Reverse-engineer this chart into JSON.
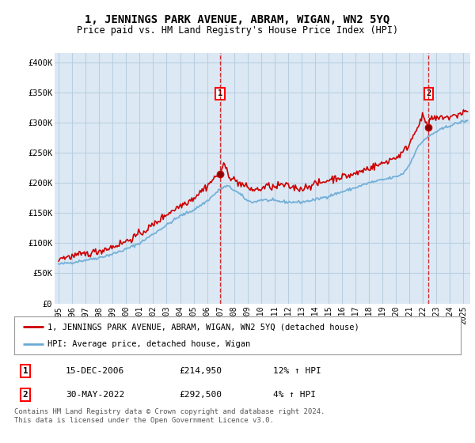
{
  "title": "1, JENNINGS PARK AVENUE, ABRAM, WIGAN, WN2 5YQ",
  "subtitle": "Price paid vs. HM Land Registry's House Price Index (HPI)",
  "ylabel_ticks": [
    "£0",
    "£50K",
    "£100K",
    "£150K",
    "£200K",
    "£250K",
    "£300K",
    "£350K",
    "£400K"
  ],
  "ytick_values": [
    0,
    50000,
    100000,
    150000,
    200000,
    250000,
    300000,
    350000,
    400000
  ],
  "ylim": [
    0,
    415000
  ],
  "xlim_start": 1994.7,
  "xlim_end": 2025.5,
  "background_color": "#dce9f5",
  "plot_bg_color": "#dce9f5",
  "grid_color": "#b8cfe0",
  "hpi_line_color": "#6aaad4",
  "price_line_color": "#cc0000",
  "sale1_x": 2006.96,
  "sale1_y": 214950,
  "sale2_x": 2022.41,
  "sale2_y": 292500,
  "legend_label_price": "1, JENNINGS PARK AVENUE, ABRAM, WIGAN, WN2 5YQ (detached house)",
  "legend_label_hpi": "HPI: Average price, detached house, Wigan",
  "table_row1": [
    "1",
    "15-DEC-2006",
    "£214,950",
    "12% ↑ HPI"
  ],
  "table_row2": [
    "2",
    "30-MAY-2022",
    "£292,500",
    "4% ↑ HPI"
  ],
  "footnote": "Contains HM Land Registry data © Crown copyright and database right 2024.\nThis data is licensed under the Open Government Licence v3.0.",
  "xtick_years": [
    1995,
    1996,
    1997,
    1998,
    1999,
    2000,
    2001,
    2002,
    2003,
    2004,
    2005,
    2006,
    2007,
    2008,
    2009,
    2010,
    2011,
    2012,
    2013,
    2014,
    2015,
    2016,
    2017,
    2018,
    2019,
    2020,
    2021,
    2022,
    2023,
    2024,
    2025
  ]
}
